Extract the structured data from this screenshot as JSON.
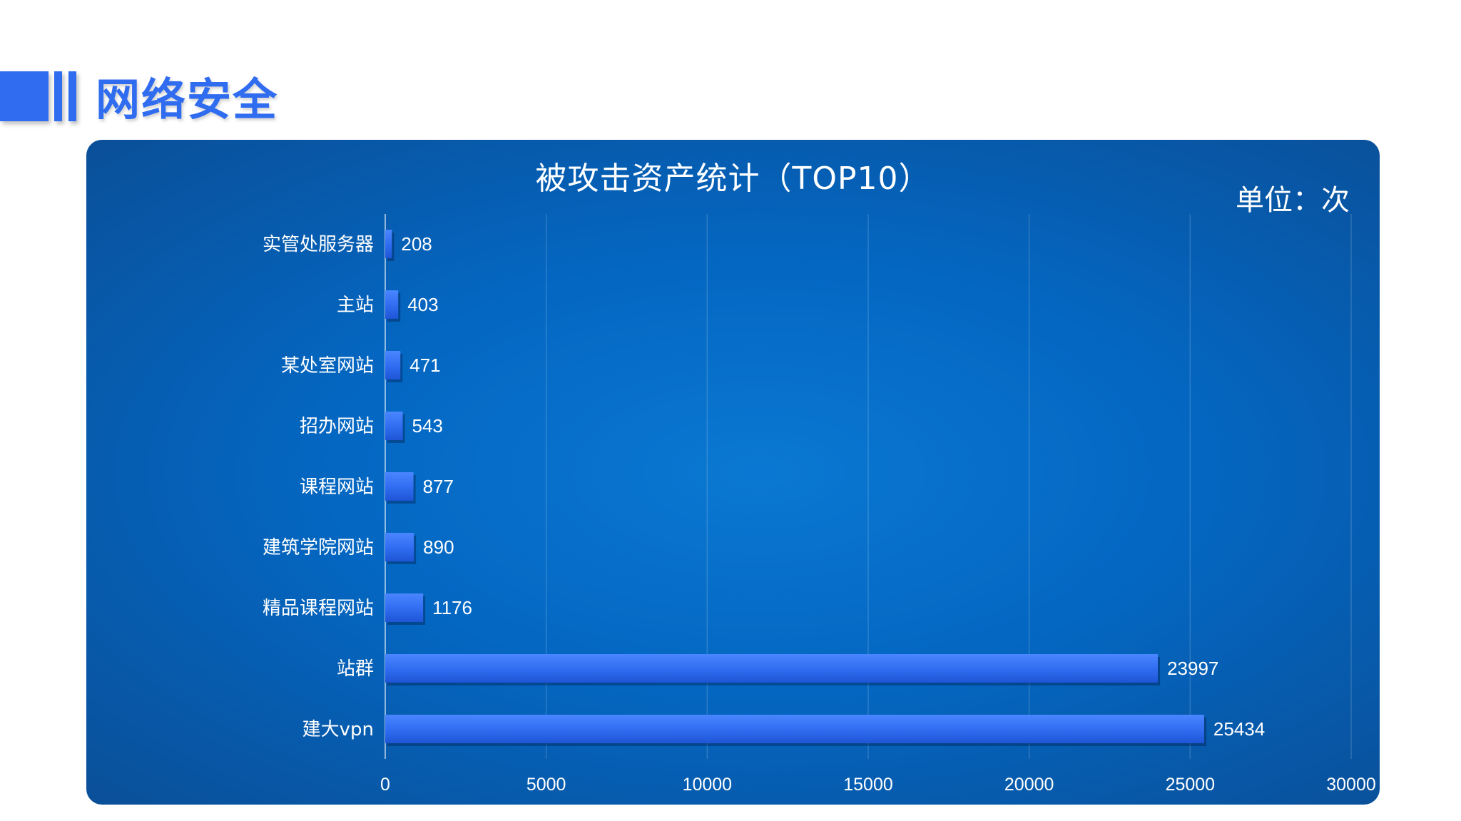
{
  "header": {
    "title": "网络安全",
    "accent_color": "#2f6cf0"
  },
  "panel": {
    "title": "被攻击资产统计（TOP10）",
    "unit": "单位：次"
  },
  "chart_data": {
    "type": "bar",
    "orientation": "horizontal",
    "title": "被攻击资产统计（TOP10）",
    "unit": "单位：次",
    "categories": [
      "实管处服务器",
      "主站",
      "某处室网站",
      "招办网站",
      "课程网站",
      "建筑学院网站",
      "精品课程网站",
      "站群",
      "建大vpn"
    ],
    "values": [
      208,
      403,
      471,
      543,
      877,
      890,
      1176,
      23997,
      25434
    ],
    "xlim": [
      0,
      30000
    ],
    "xticks": [
      0,
      5000,
      10000,
      15000,
      20000,
      25000,
      30000
    ],
    "grid": true,
    "legend": "none",
    "bar_color": "#2f6cf0"
  }
}
